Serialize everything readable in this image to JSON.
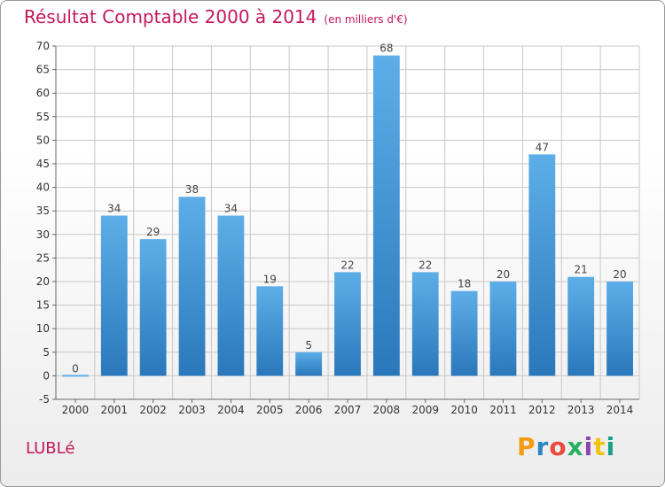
{
  "chart_data": {
    "type": "bar",
    "title": "Résultat Comptable 2000 à 2014",
    "subtitle": "(en milliers d'€)",
    "commune": "LUBLé",
    "logo": "Proxiti",
    "categories": [
      "2000",
      "2001",
      "2002",
      "2003",
      "2004",
      "2005",
      "2006",
      "2007",
      "2008",
      "2009",
      "2010",
      "2011",
      "2012",
      "2013",
      "2014"
    ],
    "values": [
      0,
      34,
      29,
      38,
      34,
      19,
      5,
      22,
      68,
      22,
      18,
      20,
      47,
      21,
      20
    ],
    "ylim": [
      -5,
      70
    ],
    "ytick_step": 5,
    "grid": true,
    "colors": {
      "bar_top": "#5daee8",
      "bar_bottom": "#2a78bb",
      "grid": "#c8c8c8",
      "title": "#c2185b",
      "logo": [
        "#f39c12",
        "#2e86c1",
        "#e74c3c",
        "#27ae60",
        "#8e44ad",
        "#f1c40f",
        "#16a085"
      ]
    }
  }
}
